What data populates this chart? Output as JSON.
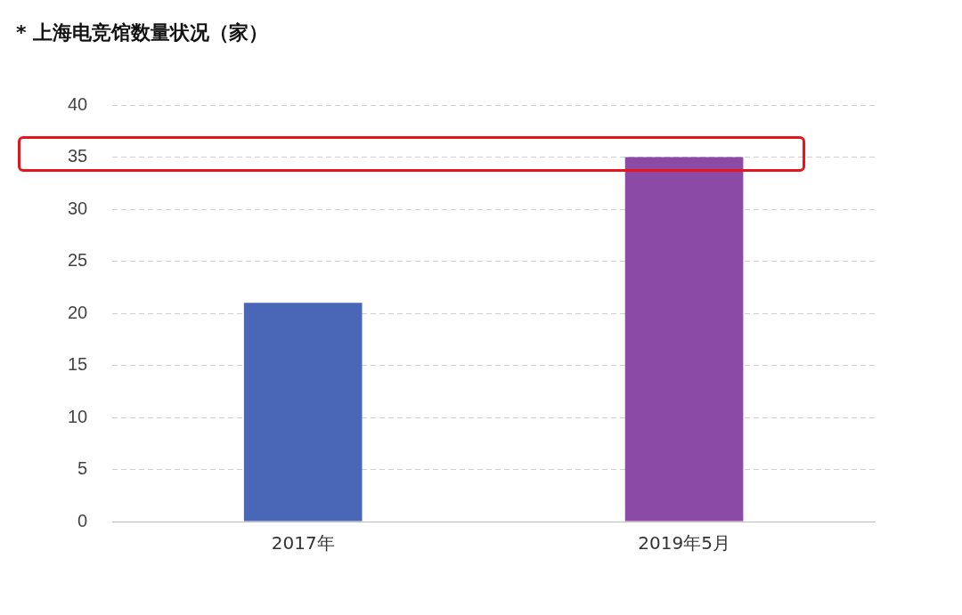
{
  "chart_data": {
    "type": "bar",
    "title": "* 上海电竞馆数量状况（家）",
    "categories": [
      "2017年",
      "2019年5月"
    ],
    "values": [
      21,
      35
    ],
    "colors": [
      "#4a66b6",
      "#8a4aa6"
    ],
    "ylim": [
      0,
      40
    ],
    "yticks": [
      0,
      5,
      10,
      15,
      20,
      25,
      30,
      35,
      40
    ],
    "grid": "y",
    "legend": false
  }
}
